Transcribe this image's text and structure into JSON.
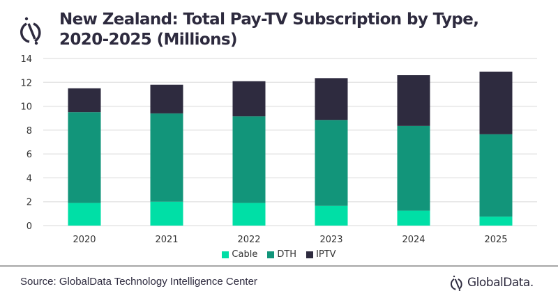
{
  "header": {
    "logo_icon": "globaldata-mark-icon",
    "title_line1": "New Zealand: Total Pay-TV Subscription by Type,",
    "title_line2": "2020-2025 (Millions)"
  },
  "footer": {
    "source": "Source: GlobalData Technology Intelligence Center",
    "brand": "GlobalData."
  },
  "chart_data": {
    "type": "bar",
    "stacked": true,
    "title": "New Zealand: Total Pay-TV Subscription by Type, 2020-2025 (Millions)",
    "xlabel": "",
    "ylabel": "",
    "categories": [
      "2020",
      "2021",
      "2022",
      "2023",
      "2024",
      "2025"
    ],
    "series": [
      {
        "name": "Cable",
        "color": "#00dfa6",
        "values": [
          1.9,
          2.0,
          1.9,
          1.65,
          1.25,
          0.75
        ]
      },
      {
        "name": "DTH",
        "color": "#12957a",
        "values": [
          7.6,
          7.4,
          7.25,
          7.2,
          7.1,
          6.9
        ]
      },
      {
        "name": "IPTV",
        "color": "#2e2b3f",
        "values": [
          2.0,
          2.4,
          2.95,
          3.5,
          4.25,
          5.25
        ]
      }
    ],
    "ylim": [
      0,
      14
    ],
    "yticks": [
      0,
      2,
      4,
      6,
      8,
      10,
      12,
      14
    ],
    "grid": true,
    "legend_position": "bottom-center"
  }
}
